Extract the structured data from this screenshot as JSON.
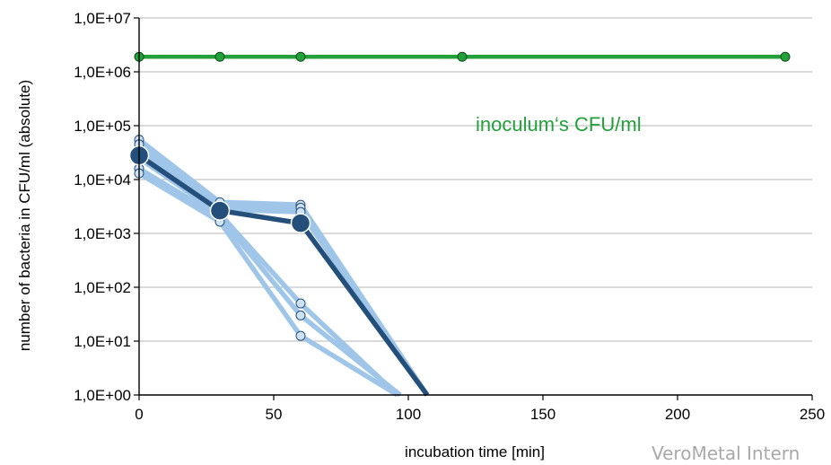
{
  "chart_data": {
    "type": "line",
    "xlabel": "incubation time [min]",
    "ylabel": "number of bacteria in CFU/ml (absolute)",
    "xlim": [
      0,
      250
    ],
    "ylim": [
      1,
      10000000
    ],
    "y_scale": "log",
    "grid": true,
    "x_ticks": [
      {
        "value": 0,
        "label": "0"
      },
      {
        "value": 50,
        "label": "50"
      },
      {
        "value": 100,
        "label": "100"
      },
      {
        "value": 150,
        "label": "150"
      },
      {
        "value": 200,
        "label": "200"
      },
      {
        "value": 250,
        "label": "250"
      }
    ],
    "y_ticks": [
      {
        "value": 1,
        "label": "1,0E+00"
      },
      {
        "value": 10,
        "label": "1,0E+01"
      },
      {
        "value": 100,
        "label": "1,0E+02"
      },
      {
        "value": 1000,
        "label": "1,0E+03"
      },
      {
        "value": 10000,
        "label": "1,0E+04"
      },
      {
        "value": 100000,
        "label": "1,0E+05"
      },
      {
        "value": 1000000,
        "label": "1,0E+06"
      },
      {
        "value": 10000000,
        "label": "1,0E+07"
      }
    ],
    "annotations": [
      {
        "text": "inoculum‘s CFU/ml",
        "x": 125,
        "y": 80000
      }
    ],
    "series": [
      {
        "role": "inoculum",
        "color": "#22a03a",
        "markers": true,
        "x": [
          0,
          30,
          60,
          120,
          240
        ],
        "y": [
          1900000,
          1900000,
          1900000,
          1900000,
          1900000
        ]
      },
      {
        "role": "replicate",
        "color": "#9fc5e8",
        "markers": true,
        "x": [
          0,
          30,
          60,
          107
        ],
        "y": [
          55000,
          3800,
          3400,
          1
        ]
      },
      {
        "role": "replicate",
        "color": "#9fc5e8",
        "markers": true,
        "x": [
          0,
          30,
          60,
          107
        ],
        "y": [
          45000,
          3300,
          3000,
          1
        ]
      },
      {
        "role": "replicate",
        "color": "#9fc5e8",
        "markers": true,
        "x": [
          0,
          30,
          60,
          107
        ],
        "y": [
          35000,
          2800,
          2500,
          1
        ]
      },
      {
        "role": "replicate",
        "color": "#9fc5e8",
        "markers": true,
        "x": [
          0,
          30,
          60,
          96
        ],
        "y": [
          25000,
          2300,
          50,
          1
        ]
      },
      {
        "role": "replicate",
        "color": "#9fc5e8",
        "markers": true,
        "x": [
          0,
          30,
          60,
          97
        ],
        "y": [
          16000,
          2000,
          30,
          1
        ]
      },
      {
        "role": "replicate",
        "color": "#9fc5e8",
        "markers": true,
        "x": [
          0,
          30,
          60,
          96
        ],
        "y": [
          13000,
          1650,
          12.5,
          1
        ]
      },
      {
        "role": "mean",
        "color": "#234f7a",
        "markers": true,
        "x": [
          0,
          30,
          60,
          107
        ],
        "y": [
          28000,
          2650,
          1550,
          1
        ]
      }
    ]
  },
  "watermark": {
    "text": "VeroMetal Intern"
  }
}
